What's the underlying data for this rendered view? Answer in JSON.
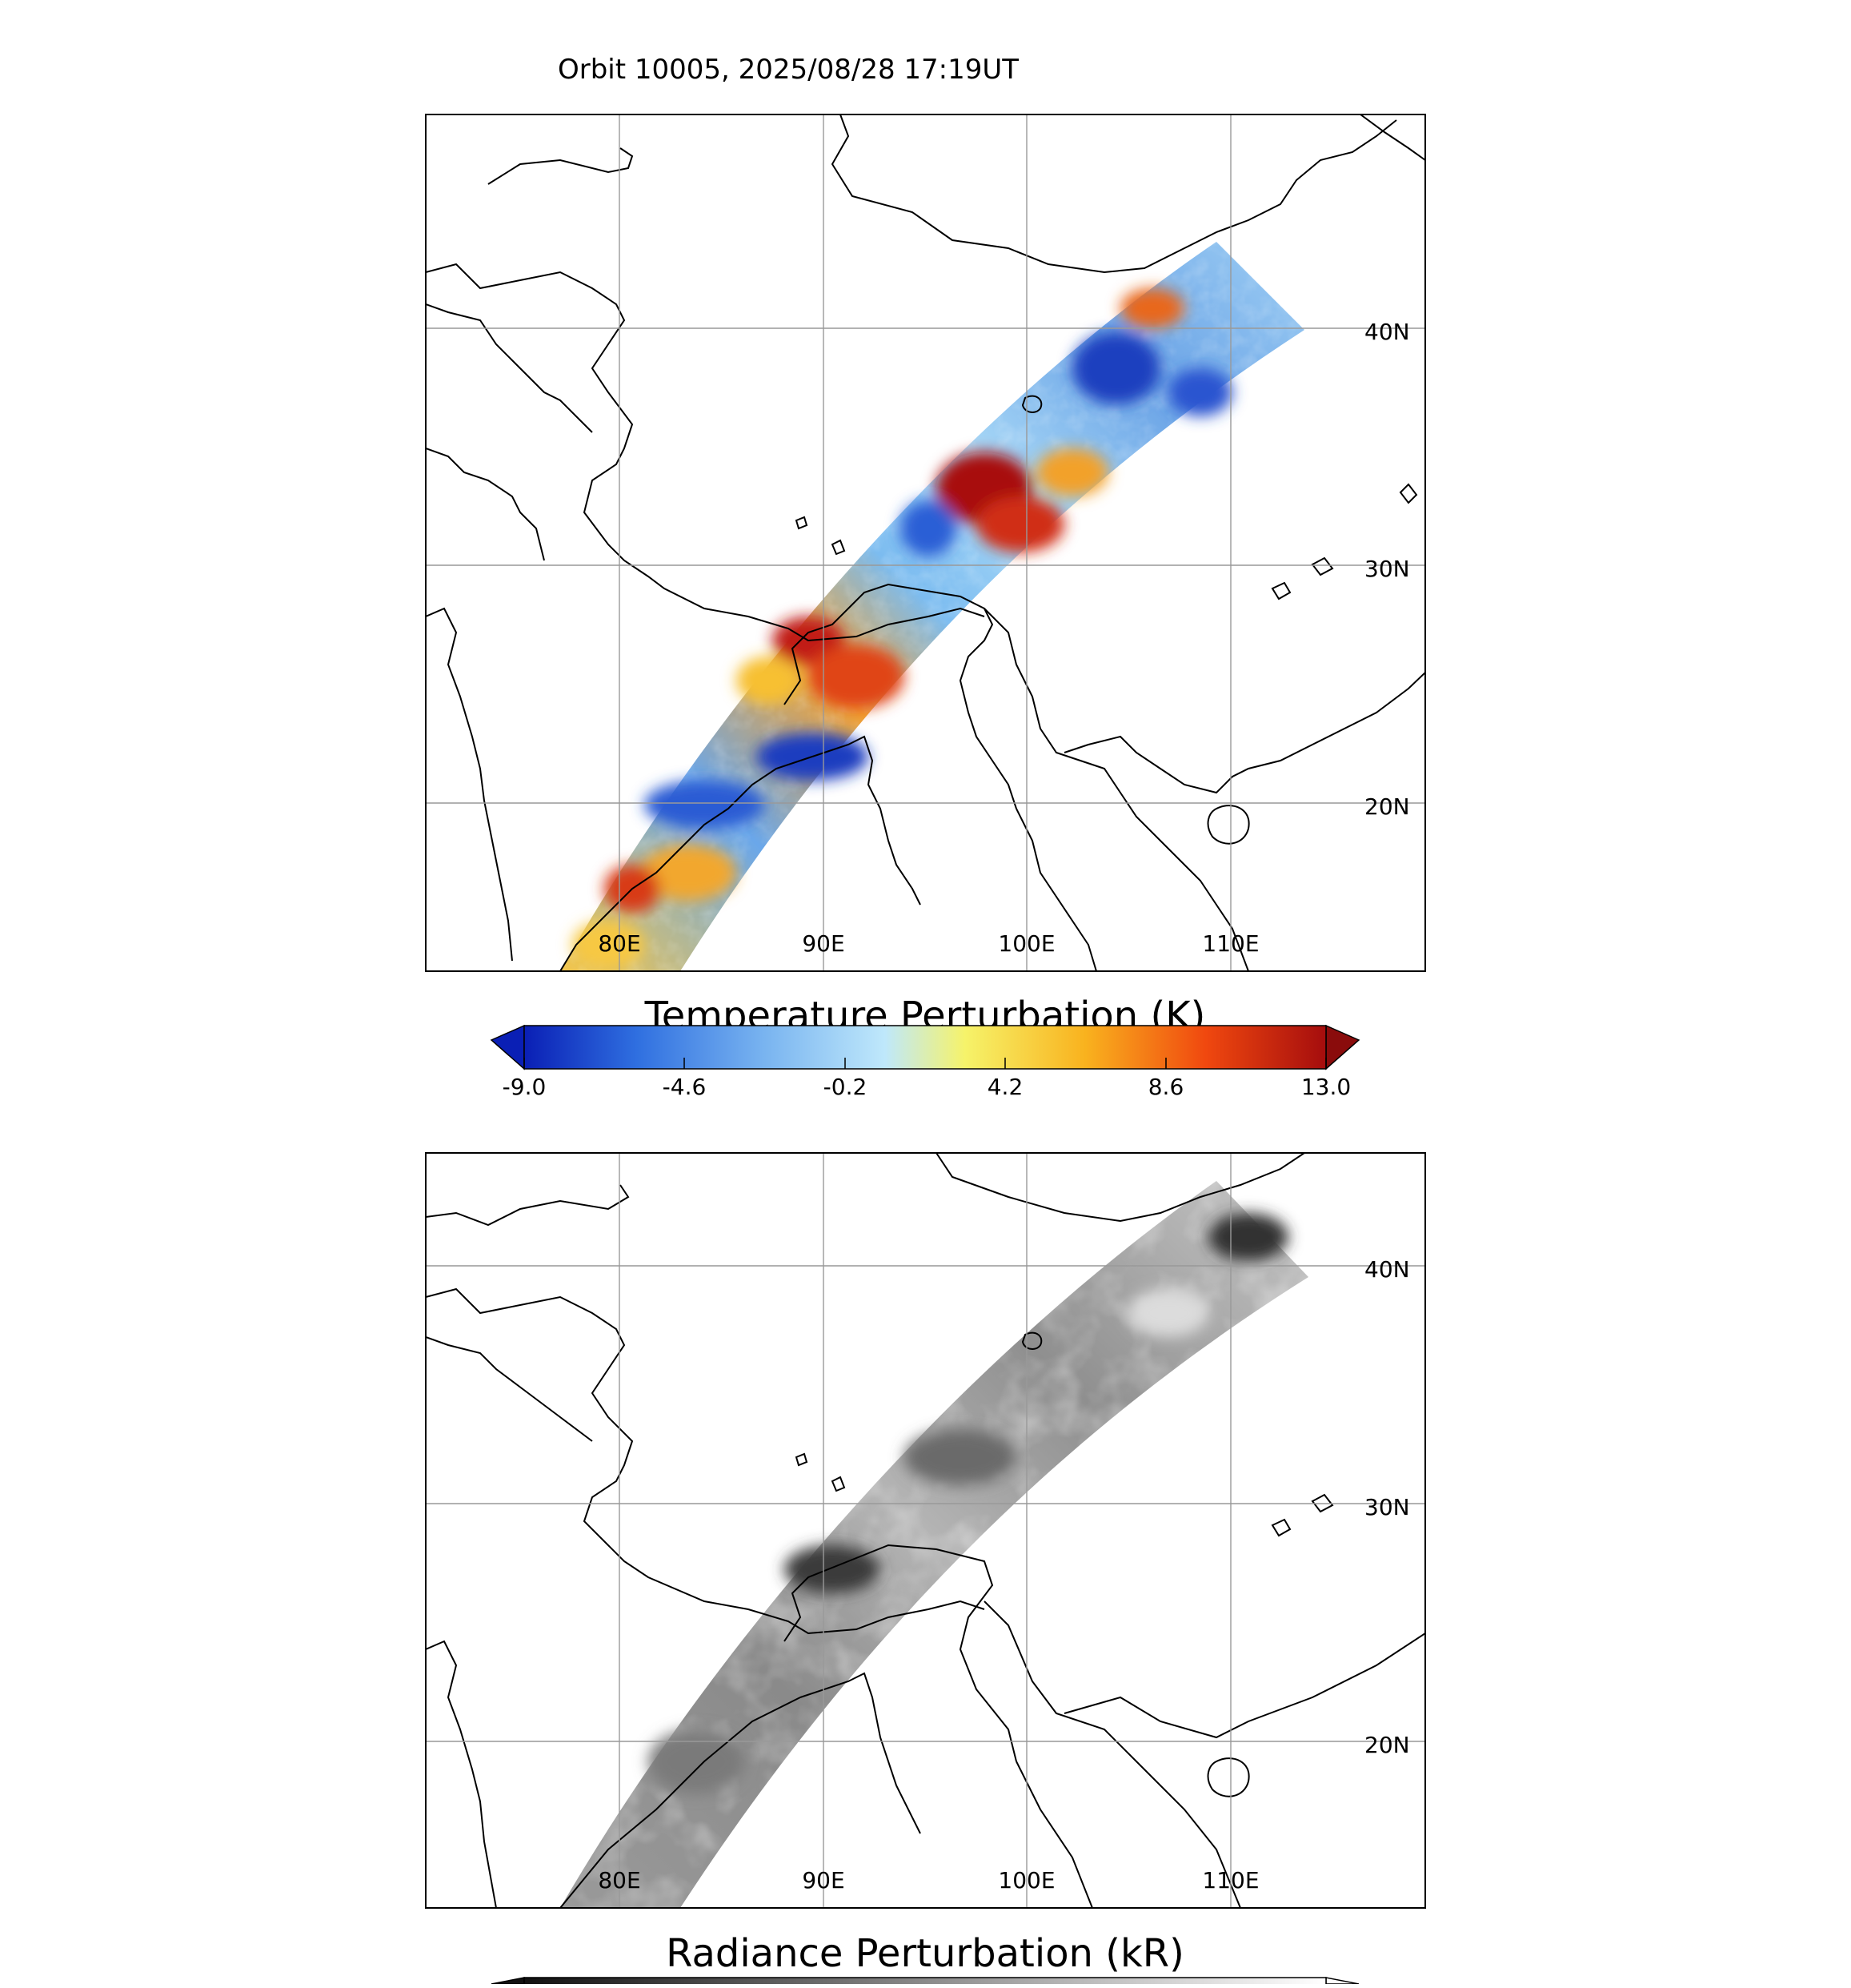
{
  "header": {
    "title": "Orbit 10005, 2025/08/28 17:19UT"
  },
  "panels": [
    {
      "id": "temperature",
      "lat_labels": [
        "40N",
        "30N",
        "20N"
      ],
      "lon_labels": [
        "80E",
        "90E",
        "100E",
        "110E"
      ],
      "colorbar": {
        "title": "Temperature Perturbation (K)",
        "ticks": [
          "-9.0",
          "-4.6",
          "-0.2",
          "4.2",
          "8.6",
          "13.0"
        ],
        "colors": [
          "#0a1fb5",
          "#2f6fe0",
          "#79b4f0",
          "#bfe8fb",
          "#f6f36a",
          "#f9b21e",
          "#f0480f",
          "#a50d0d"
        ]
      }
    },
    {
      "id": "radiance",
      "lat_labels": [
        "40N",
        "30N",
        "20N"
      ],
      "lon_labels": [
        "80E",
        "90E",
        "100E",
        "110E"
      ],
      "colorbar": {
        "title": "Radiance Perturbation (kR)",
        "colors": [
          "#111111",
          "#666666",
          "#bbbbbb",
          "#ffffff"
        ]
      }
    }
  ]
}
